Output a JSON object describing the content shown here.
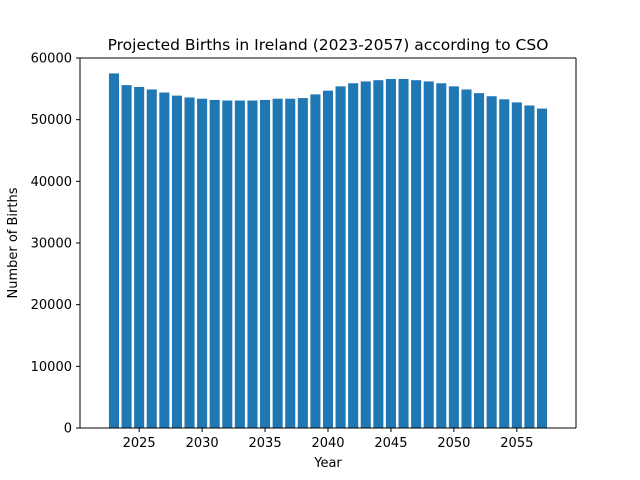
{
  "chart_data": {
    "type": "bar",
    "title": "Projected Births in Ireland (2023-2057) according to CSO",
    "xlabel": "Year",
    "ylabel": "Number of Births",
    "bar_color": "#1f77b4",
    "grid": false,
    "legend": "none",
    "xlim": [
      2020.3,
      2059.7
    ],
    "ylim": [
      0,
      60000
    ],
    "x_ticks": [
      2025,
      2030,
      2035,
      2040,
      2045,
      2050,
      2055
    ],
    "x_tick_labels": [
      "2025",
      "2030",
      "2035",
      "2040",
      "2045",
      "2050",
      "2055"
    ],
    "y_ticks": [
      0,
      10000,
      20000,
      30000,
      40000,
      50000,
      60000
    ],
    "y_tick_labels": [
      "0",
      "10000",
      "20000",
      "30000",
      "40000",
      "50000",
      "60000"
    ],
    "x": [
      2023,
      2024,
      2025,
      2026,
      2027,
      2028,
      2029,
      2030,
      2031,
      2032,
      2033,
      2034,
      2035,
      2036,
      2037,
      2038,
      2039,
      2040,
      2041,
      2042,
      2043,
      2044,
      2045,
      2046,
      2047,
      2048,
      2049,
      2050,
      2051,
      2052,
      2053,
      2054,
      2055,
      2056,
      2057
    ],
    "values": [
      57500,
      55600,
      55300,
      54900,
      54400,
      53900,
      53600,
      53400,
      53200,
      53100,
      53100,
      53100,
      53200,
      53400,
      53400,
      53500,
      54100,
      54700,
      55400,
      55900,
      56200,
      56400,
      56600,
      56600,
      56400,
      56200,
      55900,
      55400,
      54900,
      54300,
      53800,
      53300,
      52800,
      52300,
      51800
    ]
  }
}
